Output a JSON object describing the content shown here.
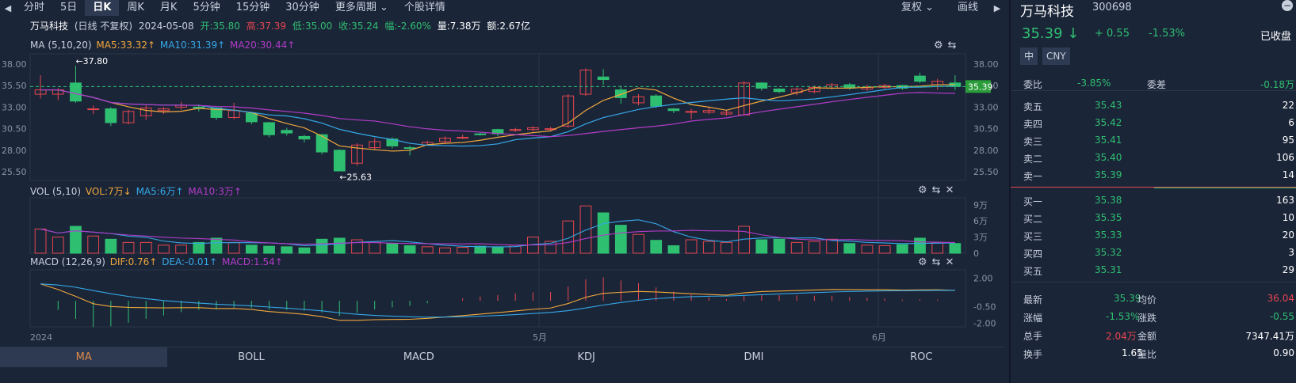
{
  "toolbar": {
    "tabs": [
      "分时",
      "5日",
      "日K",
      "周K",
      "月K",
      "5分钟",
      "15分钟",
      "30分钟",
      "更多周期",
      "个股详情"
    ],
    "active": "日K",
    "right": [
      "复权",
      "画线"
    ]
  },
  "info": {
    "name": "万马科技",
    "mode": "(日线 不复权)",
    "date": "2024-05-08",
    "open": "开:35.80",
    "high": "高:37.39",
    "low": "低:35.00",
    "close": "收:35.24",
    "amp": "幅:-2.60%",
    "vol": "量:7.38万",
    "amt": "额:2.67亿"
  },
  "ma_legend": {
    "title": "MA (5,10,20)",
    "ma5": "MA5:33.32↑",
    "ma10": "MA10:31.39↑",
    "ma20": "MA20:30.44↑"
  },
  "vol_legend": {
    "title": "VOL (5,10)",
    "vol": "VOL:7万↓",
    "ma5": "MA5:6万↑",
    "ma10": "MA10:3万↑"
  },
  "macd_legend": {
    "title": "MACD (12,26,9)",
    "dif": "DIF:0.76↑",
    "dea": "DEA:-0.01↑",
    "macd": "MACD:1.54↑"
  },
  "price_axis": [
    "38.00",
    "35.50",
    "33.00",
    "30.50",
    "28.00",
    "25.50"
  ],
  "price_tag": "35.39",
  "high_mark": "←37.80",
  "low_mark": "←25.63",
  "vol_axis": [
    "9万",
    "6万",
    "3万",
    "0"
  ],
  "macd_axis": [
    "2.00",
    "-0.50",
    "-2.00"
  ],
  "x_labels": [
    "2024",
    "5月",
    "6月"
  ],
  "bottom_tabs": [
    "MA",
    "BOLL",
    "MACD",
    "KDJ",
    "DMI",
    "ROC"
  ],
  "colors": {
    "up": "#e5464f",
    "down": "#2fbf71",
    "ma5": "#f0a83c",
    "ma10": "#35a8e8",
    "ma20": "#b23cc8"
  },
  "chart_data": {
    "type": "candlestick",
    "candles": [
      [
        34.5,
        35.0,
        36.7,
        34.0
      ],
      [
        34.5,
        35.0,
        35.2,
        33.8
      ],
      [
        35.8,
        33.7,
        37.8,
        33.5
      ],
      [
        32.8,
        32.8,
        33.2,
        32.2
      ],
      [
        32.8,
        31.2,
        33.0,
        30.8
      ],
      [
        31.2,
        32.5,
        32.7,
        31.0
      ],
      [
        32.0,
        32.9,
        33.2,
        31.5
      ],
      [
        32.6,
        32.8,
        33.0,
        32.2
      ],
      [
        33.0,
        33.2,
        33.6,
        32.7
      ],
      [
        33.0,
        32.9,
        33.3,
        32.5
      ],
      [
        32.9,
        31.8,
        33.0,
        31.5
      ],
      [
        31.8,
        32.6,
        33.5,
        31.6
      ],
      [
        32.3,
        31.3,
        32.4,
        31.0
      ],
      [
        31.2,
        29.8,
        31.3,
        29.5
      ],
      [
        30.3,
        30.0,
        30.6,
        29.7
      ],
      [
        29.6,
        29.3,
        29.8,
        28.9
      ],
      [
        29.8,
        27.8,
        29.9,
        27.5
      ],
      [
        28.0,
        25.6,
        28.1,
        25.6
      ],
      [
        26.5,
        28.6,
        28.8,
        26.2
      ],
      [
        28.3,
        29.0,
        29.4,
        28.0
      ],
      [
        29.3,
        28.5,
        29.5,
        28.2
      ],
      [
        28.3,
        28.2,
        28.5,
        27.4
      ],
      [
        28.6,
        28.9,
        29.1,
        28.6
      ],
      [
        29.0,
        29.4,
        29.6,
        28.8
      ],
      [
        29.4,
        29.5,
        29.8,
        29.3
      ],
      [
        29.9,
        29.8,
        30.0,
        29.7
      ],
      [
        30.4,
        29.9,
        30.5,
        29.6
      ],
      [
        30.4,
        30.4,
        30.6,
        30.1
      ],
      [
        30.4,
        30.6,
        30.8,
        30.2
      ],
      [
        30.4,
        30.5,
        30.7,
        30.3
      ],
      [
        30.8,
        34.3,
        34.5,
        30.6
      ],
      [
        34.5,
        37.3,
        37.5,
        34.3
      ],
      [
        36.5,
        36.2,
        37.4,
        35.6
      ],
      [
        35.0,
        34.1,
        35.5,
        33.4
      ],
      [
        33.5,
        34.2,
        34.5,
        33.2
      ],
      [
        34.3,
        33.1,
        34.5,
        32.9
      ],
      [
        32.8,
        32.6,
        32.9,
        32.3
      ],
      [
        32.4,
        32.5,
        32.8,
        31.6
      ],
      [
        32.4,
        32.6,
        33.0,
        32.2
      ],
      [
        32.2,
        32.4,
        32.7,
        32.0
      ],
      [
        32.1,
        35.8,
        36.0,
        32.0
      ],
      [
        35.8,
        35.2,
        35.9,
        34.9
      ],
      [
        35.1,
        34.8,
        35.2,
        34.6
      ],
      [
        34.7,
        35.1,
        35.3,
        34.4
      ],
      [
        34.8,
        35.3,
        35.5,
        34.6
      ],
      [
        35.2,
        35.6,
        35.8,
        35.0
      ],
      [
        35.6,
        35.2,
        35.8,
        35.0
      ],
      [
        35.1,
        35.3,
        35.6,
        34.9
      ],
      [
        35.3,
        35.5,
        35.7,
        35.1
      ],
      [
        35.5,
        35.2,
        35.6,
        35.0
      ],
      [
        36.6,
        36.0,
        37.0,
        35.8
      ],
      [
        35.6,
        36.0,
        36.3,
        35.0
      ],
      [
        35.8,
        35.4,
        36.7,
        35.0
      ]
    ]
  }
}
